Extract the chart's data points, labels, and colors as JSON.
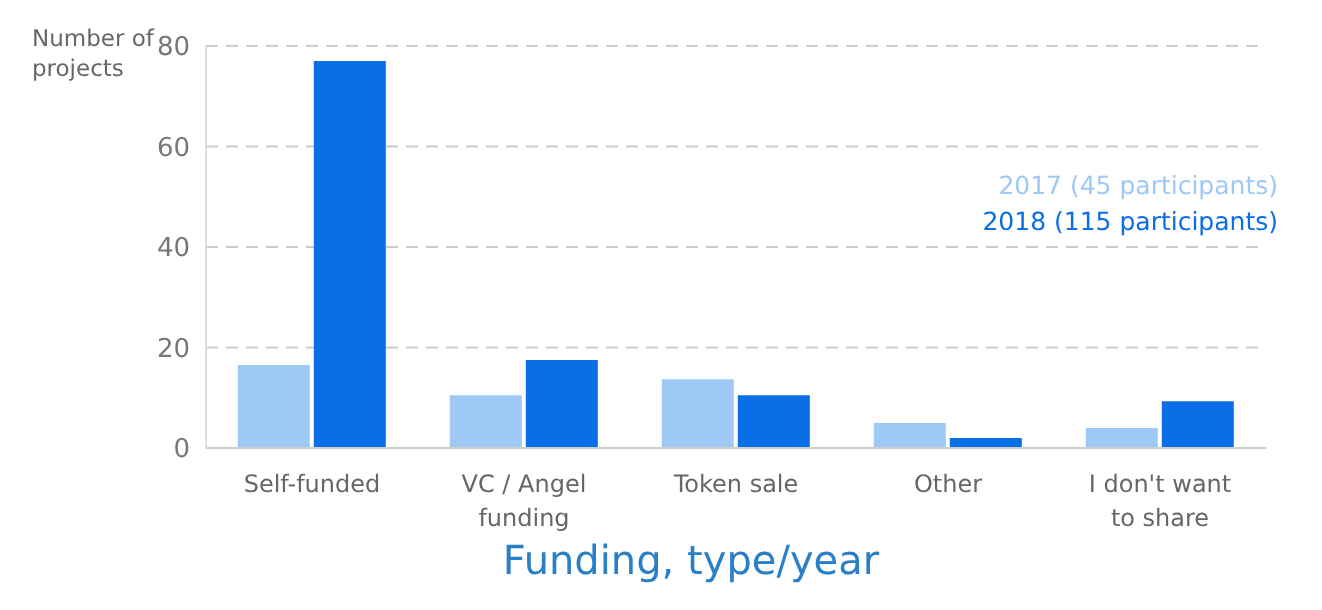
{
  "chart_data": {
    "type": "bar",
    "ylabel": "Number of projects",
    "xlabel": "Funding, type/year",
    "categories": [
      "Self-funded",
      "VC / Angel funding",
      "Token sale",
      "Other",
      "I don't want to share"
    ],
    "series": [
      {
        "name": "2017 (45 participants)",
        "color": "#9ec9f5",
        "values": [
          16.5,
          10.5,
          13.7,
          5,
          4
        ]
      },
      {
        "name": "2018 (115 participants)",
        "color": "#0a6ee6",
        "values": [
          77,
          17.5,
          10.5,
          2,
          9.3
        ]
      }
    ],
    "ylim": [
      0,
      80
    ],
    "yticks": [
      0,
      20,
      40,
      60,
      80
    ],
    "grid": "y",
    "legend": "right"
  }
}
